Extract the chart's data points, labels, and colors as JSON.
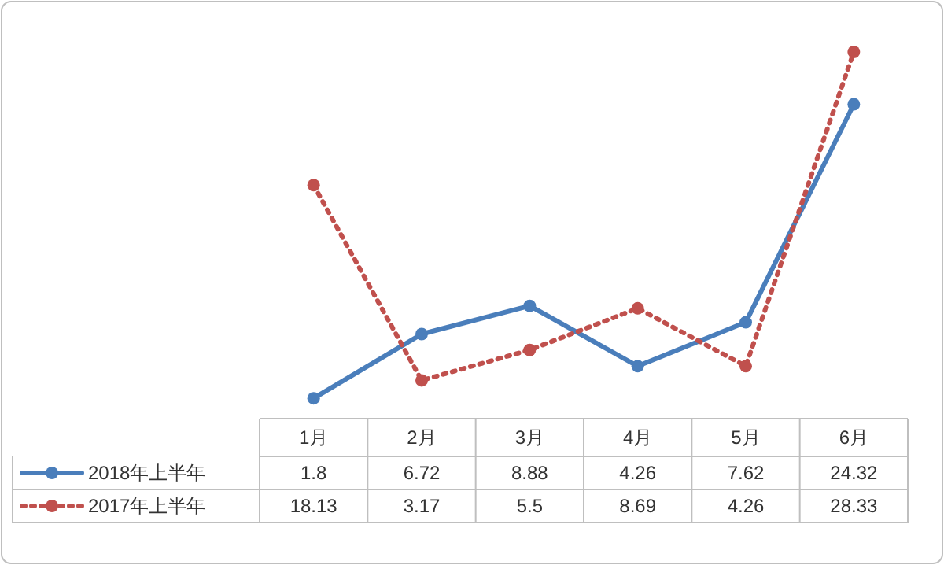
{
  "chart_data": {
    "type": "line",
    "categories": [
      "1月",
      "2月",
      "3月",
      "4月",
      "5月",
      "6月"
    ],
    "series": [
      {
        "name": "2018年上半年",
        "color": "#4a7ebb",
        "line_style": "solid",
        "values": [
          1.8,
          6.72,
          8.88,
          4.26,
          7.62,
          24.32
        ]
      },
      {
        "name": "2017年上半年",
        "color": "#c0504d",
        "line_style": "dotted",
        "values": [
          18.13,
          3.17,
          5.5,
          8.69,
          4.26,
          28.33
        ]
      }
    ],
    "marker": "circle",
    "data_labels": true,
    "legend": "bottom left"
  }
}
